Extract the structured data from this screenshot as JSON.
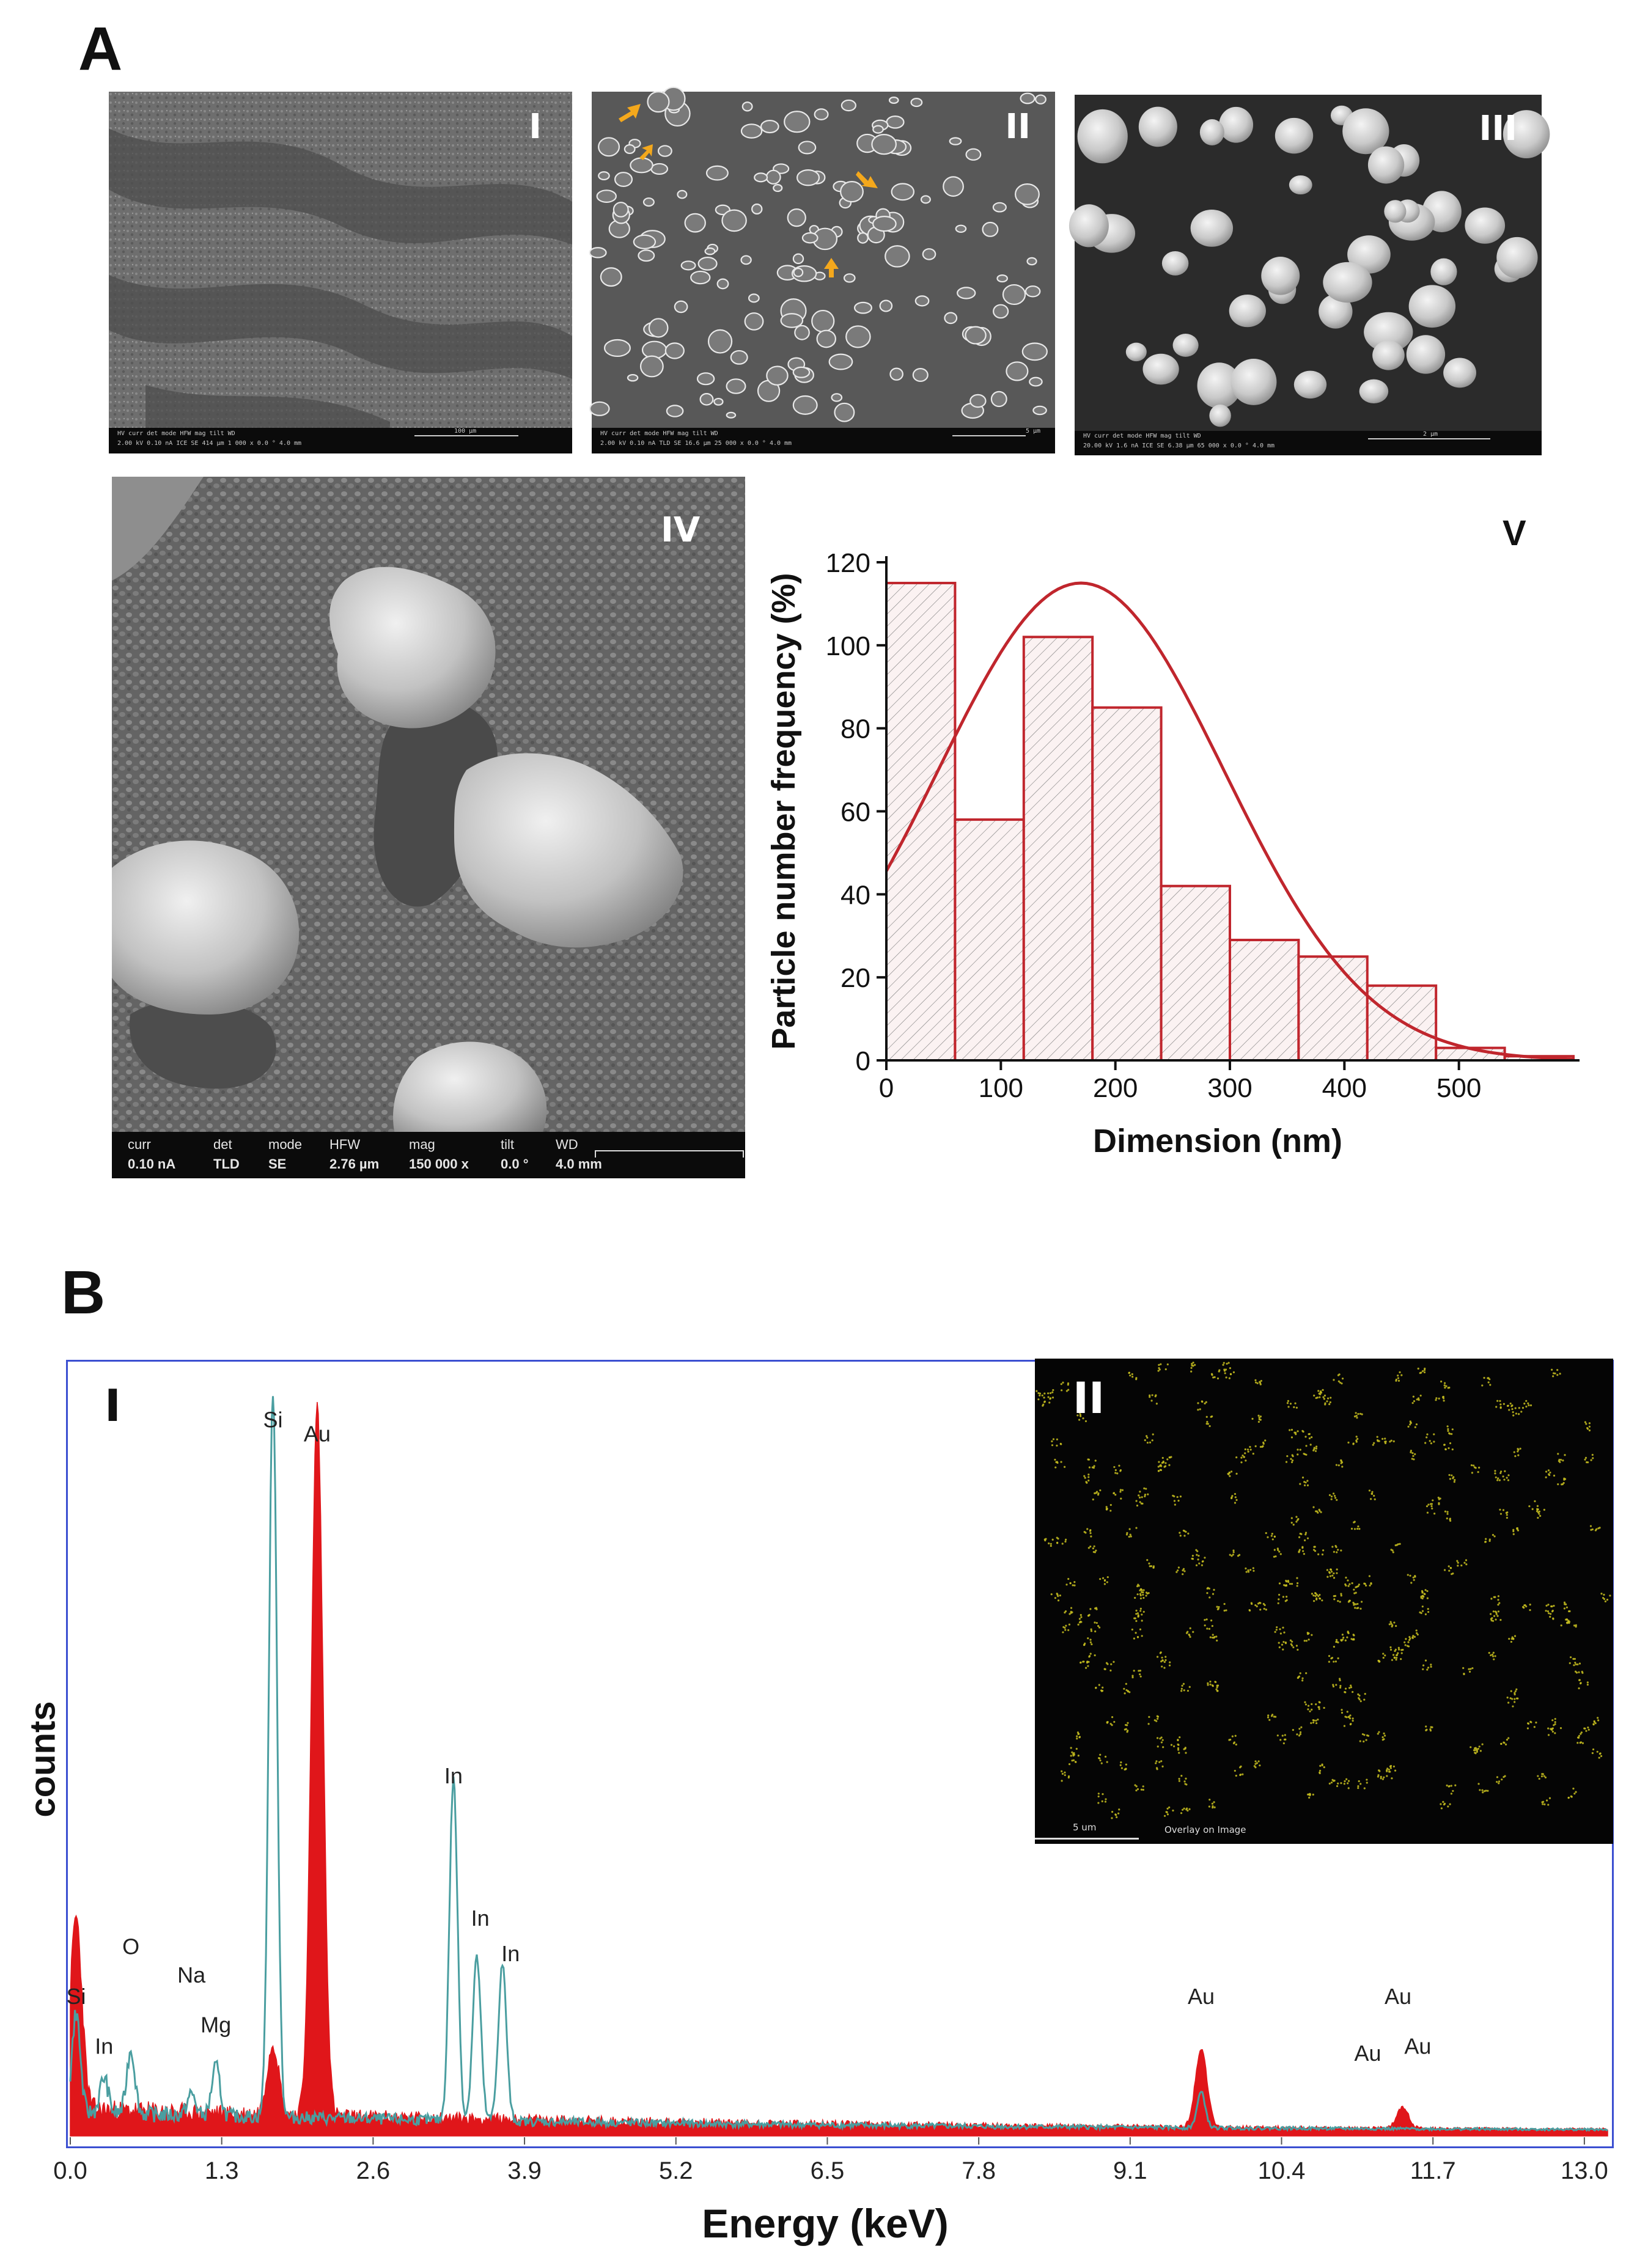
{
  "figure": {
    "panel_a_letter": "A",
    "panel_b_letter": "B"
  },
  "sem_images": {
    "i": {
      "label": "I",
      "bar_row1": "HV     curr    det   mode   HFW      mag   tilt   WD",
      "bar_row2": "2.00 kV  0.10 nA  ICE  SE   414 µm  1 000 x  0.0 °  4.0 mm",
      "scale_text": "100 µm"
    },
    "ii": {
      "label": "II",
      "bar_row1": "HV     curr    det   mode   HFW      mag    tilt   WD",
      "bar_row2": "2.00 kV  0.10 nA  TLD  SE   16.6 µm  25 000 x  0.0 °  4.0 mm",
      "scale_text": "5 µm"
    },
    "iii": {
      "label": "III",
      "bar_row1": "HV     curr    det   mode   HFW      mag    tilt   WD",
      "bar_row2": "20.00 kV  1.6 nA  ICE  SE   6.38 µm  65 000 x  0.0 °  4.0 mm",
      "scale_text": "2 µm"
    },
    "iv": {
      "label": "IV",
      "bar_headers": [
        "curr",
        "det",
        "mode",
        "HFW",
        "mag",
        "tilt",
        "WD"
      ],
      "bar_values": [
        "0.10 nA",
        "TLD",
        "SE",
        "2.76 µm",
        "150 000 x",
        "0.0 °",
        "4.0 mm"
      ]
    }
  },
  "eds_map": {
    "label": "II",
    "scale_text": "5 um",
    "caption": "Overlay on Image",
    "dot_color": "#c8c020"
  },
  "eds_panel": {
    "label": "I",
    "ylabel": "counts",
    "xlabel": "Energy (keV)",
    "peak_labels": [
      "Si",
      "Au",
      "In",
      "In",
      "In",
      "O",
      "Na",
      "Mg",
      "Si",
      "In",
      "Au",
      "Au",
      "Au",
      "Au"
    ]
  },
  "chart_data": [
    {
      "type": "bar",
      "panel": "V",
      "xlabel": "Dimension (nm)",
      "ylabel": "Particle number frequency (%)",
      "xlim": [
        0,
        600
      ],
      "ylim": [
        0,
        120
      ],
      "xticks": [
        "0",
        "100",
        "200",
        "300",
        "400",
        "500"
      ],
      "yticks": [
        "0",
        "20",
        "40",
        "60",
        "80",
        "100",
        "120"
      ],
      "bin_width": 60,
      "x": [
        0,
        60,
        120,
        180,
        240,
        300,
        360,
        420,
        480,
        540
      ],
      "values": [
        115,
        58,
        102,
        85,
        42,
        29,
        25,
        18,
        3,
        1
      ],
      "fit_curve": {
        "type": "gaussian",
        "peak_x": 170,
        "peak_y": 115,
        "sigma": 125
      },
      "color": "#c0262d"
    },
    {
      "type": "line",
      "panel": "B I",
      "xlabel": "Energy (keV)",
      "ylabel": "counts",
      "xlim": [
        0,
        13.2
      ],
      "xticks": [
        "0.0",
        "1.3",
        "2.6",
        "3.9",
        "5.2",
        "6.5",
        "7.8",
        "9.1",
        "10.4",
        "11.7",
        "13.0"
      ],
      "series": [
        {
          "color": "#e0161a",
          "fill": true,
          "peaks": [
            [
              0.05,
              0.27
            ],
            [
              1.74,
              0.1
            ],
            [
              2.12,
              1.0
            ],
            [
              9.71,
              0.11
            ],
            [
              11.44,
              0.03
            ]
          ]
        },
        {
          "color": "#4a9ea0",
          "fill": false,
          "peaks": [
            [
              0.05,
              0.14
            ],
            [
              0.29,
              0.05
            ],
            [
              0.52,
              0.09
            ],
            [
              1.04,
              0.03
            ],
            [
              1.25,
              0.07
            ],
            [
              1.74,
              1.02
            ],
            [
              3.29,
              0.48
            ],
            [
              3.49,
              0.23
            ],
            [
              3.71,
              0.22
            ],
            [
              9.71,
              0.05
            ]
          ]
        }
      ]
    }
  ]
}
